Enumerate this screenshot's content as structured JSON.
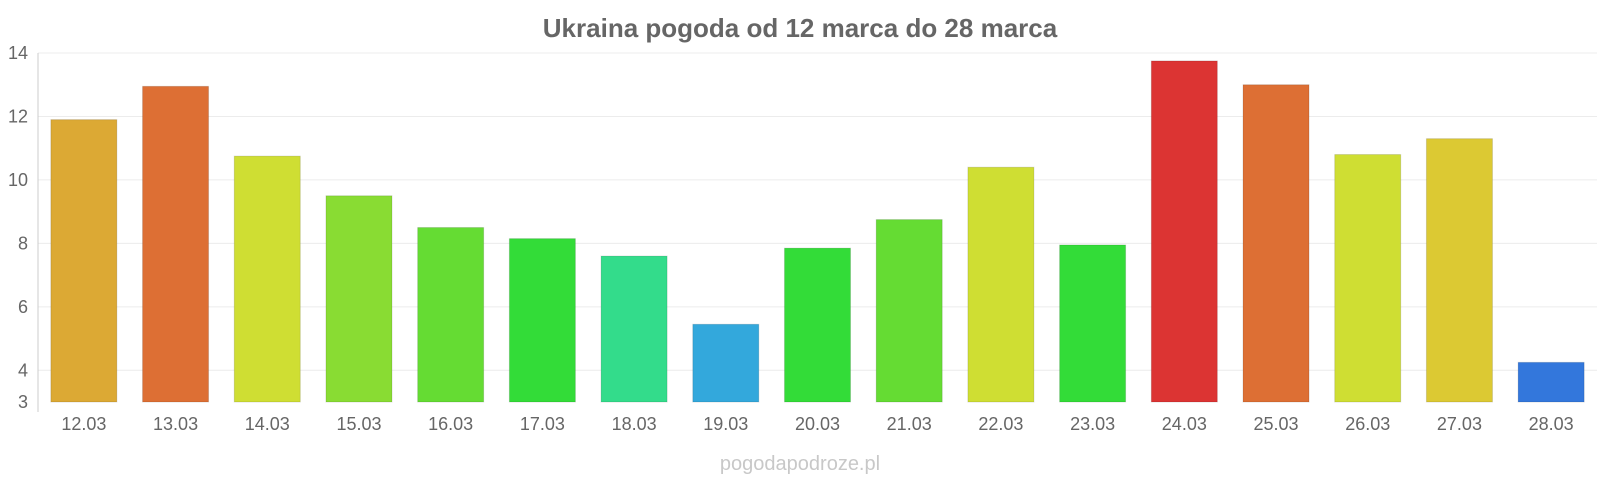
{
  "chart_data": {
    "type": "bar",
    "title": "Ukraina pogoda od 12 marca do 28 marca",
    "xlabel": "",
    "ylabel": "",
    "categories": [
      "12.03",
      "13.03",
      "14.03",
      "15.03",
      "16.03",
      "17.03",
      "18.03",
      "19.03",
      "20.03",
      "21.03",
      "22.03",
      "23.03",
      "24.03",
      "25.03",
      "26.03",
      "27.03",
      "28.03"
    ],
    "values": [
      11.9,
      12.95,
      10.75,
      9.5,
      8.5,
      8.15,
      7.6,
      5.45,
      7.85,
      8.75,
      10.4,
      7.95,
      13.75,
      13.0,
      10.8,
      11.3,
      4.25
    ],
    "colors": [
      "#dca934",
      "#dd6f34",
      "#cfde33",
      "#89dc33",
      "#65dc33",
      "#33dc38",
      "#33dc8b",
      "#33a8dc",
      "#33dc38",
      "#65dc33",
      "#cfde33",
      "#33dc38",
      "#dc3433",
      "#dd6f34",
      "#cfde33",
      "#dcc933",
      "#3377dc"
    ],
    "ylim": [
      3,
      14
    ],
    "yticks": [
      3,
      4,
      6,
      8,
      10,
      12,
      14
    ],
    "grid": true,
    "legend": "none"
  },
  "watermark": "pogodapodroze.pl"
}
